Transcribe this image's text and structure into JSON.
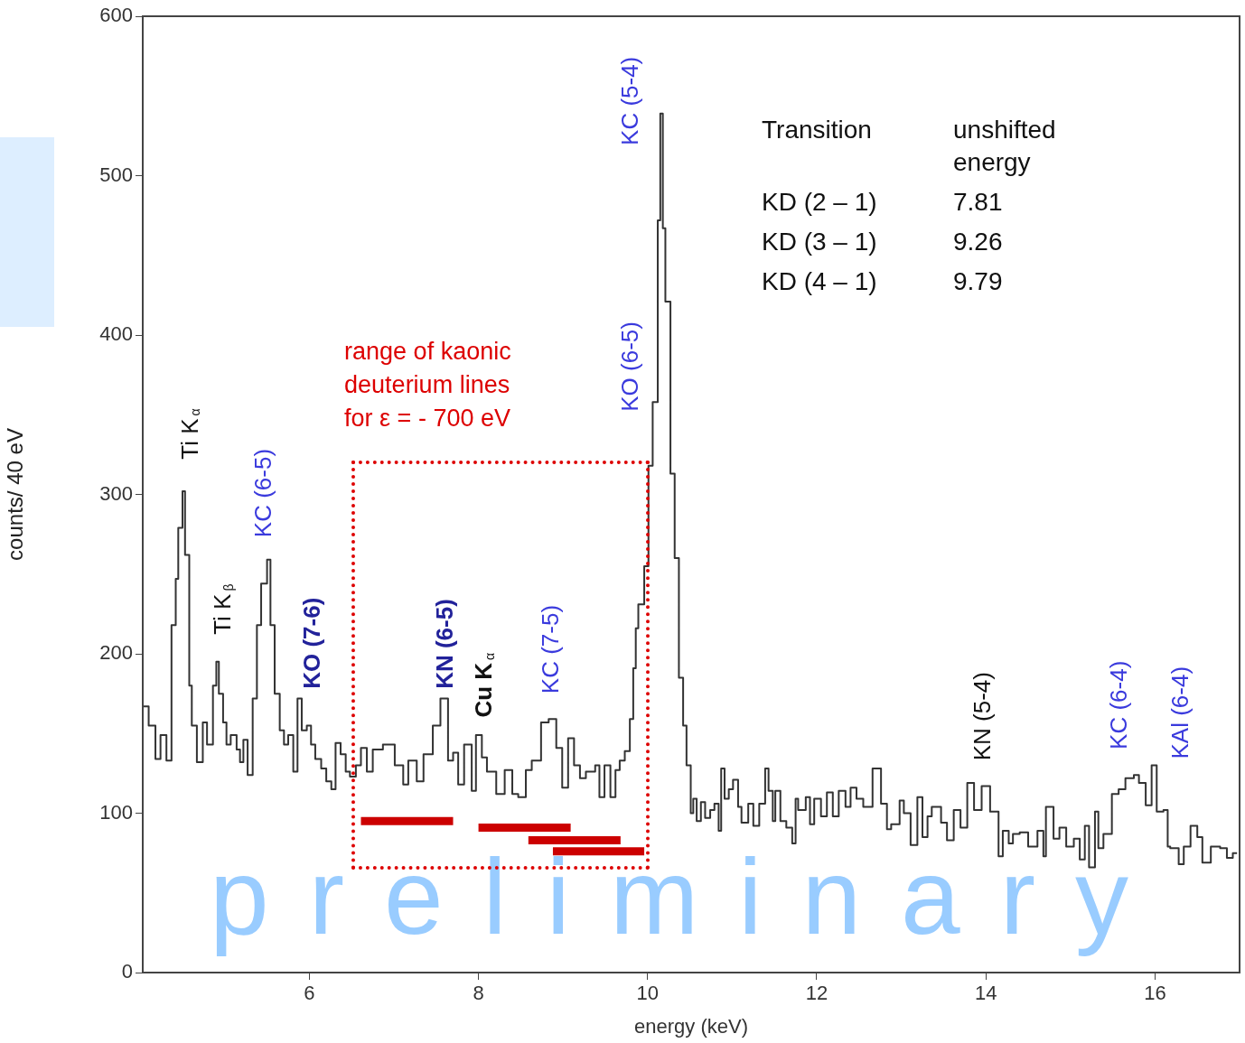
{
  "chart_data": {
    "type": "step",
    "xlabel": "energy (keV)",
    "ylabel": "counts/ 40 eV",
    "xlim": [
      4.03,
      17
    ],
    "xticks": [
      6,
      8,
      10,
      12,
      14,
      16
    ],
    "ylim": [
      0,
      600
    ],
    "yticks": [
      0,
      100,
      200,
      300,
      400,
      500,
      600
    ],
    "grid": false,
    "legend": false,
    "series": [
      {
        "color": "#333333",
        "x": [
          4.03,
          4.1,
          4.18,
          4.24,
          4.31,
          4.37,
          4.42,
          4.45,
          4.5,
          4.53,
          4.58,
          4.61,
          4.67,
          4.74,
          4.79,
          4.86,
          4.9,
          4.93,
          4.98,
          5.02,
          5.07,
          5.14,
          5.18,
          5.22,
          5.27,
          5.33,
          5.38,
          5.43,
          5.5,
          5.54,
          5.59,
          5.65,
          5.7,
          5.75,
          5.81,
          5.86,
          5.91,
          5.97,
          6.02,
          6.07,
          6.14,
          6.2,
          6.26,
          6.31,
          6.37,
          6.43,
          6.48,
          6.55,
          6.61,
          6.68,
          6.75,
          6.87,
          7.01,
          7.11,
          7.17,
          7.27,
          7.35,
          7.46,
          7.55,
          7.64,
          7.7,
          7.76,
          7.83,
          7.92,
          7.97,
          8.04,
          8.1,
          8.21,
          8.31,
          8.4,
          8.47,
          8.56,
          8.63,
          8.74,
          8.83,
          8.92,
          8.99,
          9.06,
          9.13,
          9.2,
          9.27,
          9.38,
          9.43,
          9.49,
          9.56,
          9.62,
          9.67,
          9.73,
          9.79,
          9.83,
          9.86,
          9.89,
          9.96,
          10.01,
          10.06,
          10.12,
          10.15,
          10.18,
          10.21,
          10.27,
          10.32,
          10.37,
          10.42,
          10.46,
          10.51,
          10.54,
          10.58,
          10.63,
          10.68,
          10.74,
          10.79,
          10.84,
          10.87,
          10.91,
          10.96,
          11.01,
          11.07,
          11.11,
          11.19,
          11.25,
          11.32,
          11.39,
          11.43,
          11.48,
          11.51,
          11.57,
          11.64,
          11.71,
          11.75,
          11.78,
          11.87,
          11.92,
          11.97,
          12.05,
          12.12,
          12.19,
          12.26,
          12.34,
          12.4,
          12.47,
          12.55,
          12.66,
          12.76,
          12.83,
          12.88,
          12.98,
          13.03,
          13.11,
          13.19,
          13.25,
          13.31,
          13.36,
          13.47,
          13.54,
          13.62,
          13.7,
          13.78,
          13.86,
          13.95,
          14.05,
          14.15,
          14.2,
          14.27,
          14.32,
          14.4,
          14.5,
          14.61,
          14.68,
          14.71,
          14.8,
          14.87,
          14.95,
          15.04,
          15.11,
          15.17,
          15.22,
          15.29,
          15.33,
          15.39,
          15.49,
          15.57,
          15.65,
          15.75,
          15.81,
          15.89,
          15.96,
          16.02,
          16.1,
          16.15,
          16.18,
          16.28,
          16.34,
          16.42,
          16.5,
          16.56,
          16.66,
          16.77,
          16.85,
          16.92,
          16.97
        ],
        "values": [
          143,
          167,
          155,
          134,
          149,
          133,
          218,
          247,
          279,
          302,
          262,
          180,
          155,
          132,
          157,
          143,
          180,
          195,
          175,
          157,
          143,
          149,
          140,
          132,
          146,
          124,
          172,
          218,
          244,
          259,
          218,
          175,
          152,
          143,
          149,
          126,
          172,
          152,
          155,
          143,
          134,
          128,
          120,
          115,
          144,
          137,
          126,
          123,
          130,
          141,
          126,
          140,
          143,
          130,
          118,
          133,
          120,
          137,
          155,
          172,
          133,
          138,
          118,
          143,
          114,
          149,
          135,
          126,
          112,
          127,
          112,
          110,
          127,
          133,
          157,
          159,
          141,
          116,
          147,
          130,
          122,
          126,
          130,
          110,
          130,
          110,
          127,
          133,
          139,
          159,
          191,
          216,
          231,
          255,
          318,
          358,
          472,
          539,
          467,
          421,
          313,
          260,
          185,
          155,
          130,
          100,
          109,
          95,
          107,
          97,
          102,
          106,
          89,
          128,
          109,
          115,
          121,
          104,
          94,
          106,
          92,
          106,
          128,
          114,
          95,
          114,
          95,
          91,
          81,
          109,
          102,
          110,
          93,
          109,
          98,
          113,
          98,
          114,
          104,
          116,
          109,
          104,
          128,
          106,
          90,
          93,
          108,
          100,
          80,
          110,
          85,
          98,
          104,
          94,
          83,
          102,
          91,
          119,
          102,
          117,
          101,
          73,
          89,
          81,
          87,
          88,
          79,
          89,
          73,
          104,
          84,
          91,
          79,
          84,
          71,
          92,
          66,
          101,
          78,
          87,
          112,
          115,
          122,
          124,
          119,
          105,
          130,
          101,
          102,
          79,
          78,
          68,
          79,
          92,
          85,
          69,
          79,
          78,
          72,
          75
        ]
      },
      {
        "type": "line",
        "color": "#cc0000",
        "x": [
          6.61,
          7.7
        ],
        "values": [
          95,
          95
        ]
      },
      {
        "type": "line",
        "color": "#cc0000",
        "x": [
          8.0,
          9.09
        ],
        "values": [
          91,
          91
        ]
      },
      {
        "type": "line",
        "color": "#cc0000",
        "x": [
          8.59,
          9.68
        ],
        "values": [
          83,
          83
        ]
      },
      {
        "type": "line",
        "color": "#cc0000",
        "x": [
          8.88,
          9.96
        ],
        "values": [
          76,
          76
        ]
      }
    ],
    "annotations": [
      "Ti K$_{α}$",
      "Ti K$_{β}$",
      "KC (6-5)",
      "KO (7-6)",
      "KN (6-5)",
      "Cu K$_{α}$",
      "KC (7-5)",
      "KO (6-5)",
      "KC (5-4)",
      "KN (5-4)",
      "KC (6-4)",
      "KAl (6-4)",
      "range of kaonic deuterium lines for ε = - 700 eV",
      "Transition",
      "unshifted energy",
      "KD (2 – 1)",
      "7.81",
      "KD (3 – 1)",
      "9.26",
      "KD (4 – 1)",
      "9.79",
      "preliminary"
    ]
  }
}
